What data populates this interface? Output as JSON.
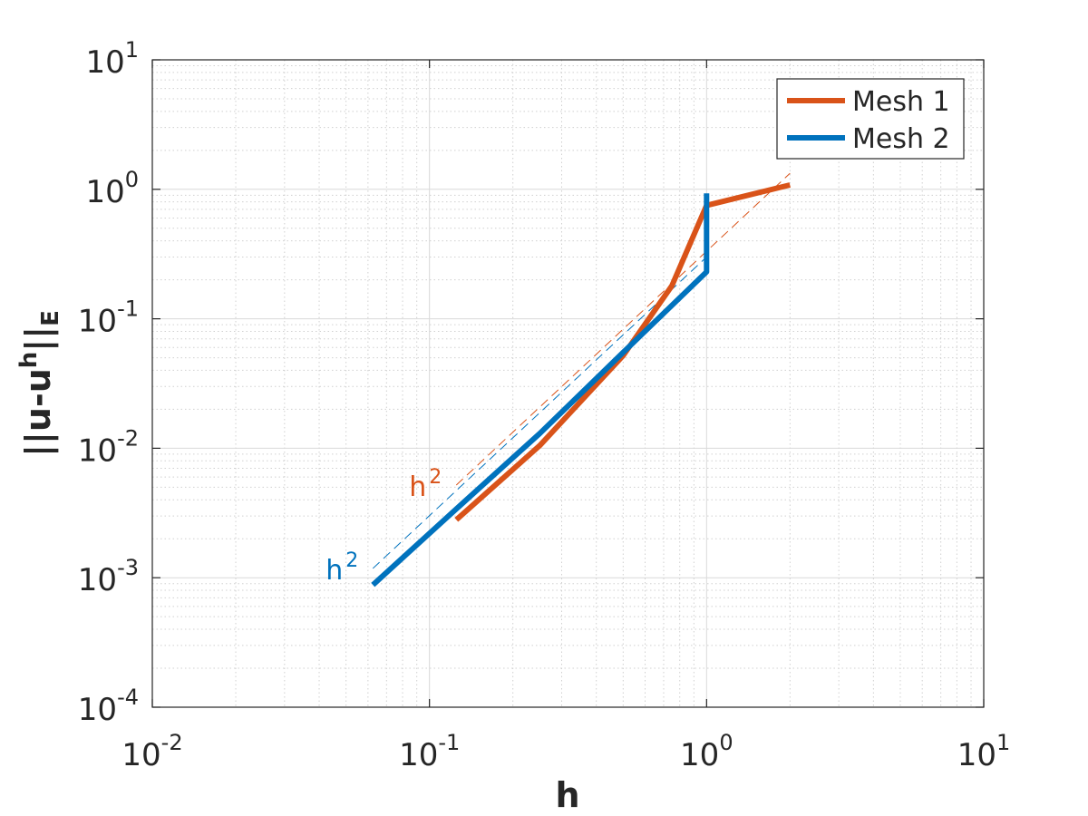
{
  "chart_data": {
    "type": "line",
    "xscale": "log",
    "yscale": "log",
    "xlim": [
      0.01,
      10
    ],
    "ylim": [
      0.0001,
      10
    ],
    "xlabel": "h",
    "ylabel": "||u-u^h||_E",
    "ylabel_parts": {
      "base": "||u-u",
      "sup": "h",
      "mid": "||",
      "sub": "E"
    },
    "grid": true,
    "minor_grid": true,
    "legend_position": "top-right",
    "x_ticks": [
      {
        "base": "10",
        "exp": "-2",
        "value": 0.01
      },
      {
        "base": "10",
        "exp": "-1",
        "value": 0.1
      },
      {
        "base": "10",
        "exp": "0",
        "value": 1
      },
      {
        "base": "10",
        "exp": "1",
        "value": 10
      }
    ],
    "y_ticks": [
      {
        "base": "10",
        "exp": "-4",
        "value": 0.0001
      },
      {
        "base": "10",
        "exp": "-3",
        "value": 0.001
      },
      {
        "base": "10",
        "exp": "-2",
        "value": 0.01
      },
      {
        "base": "10",
        "exp": "-1",
        "value": 0.1
      },
      {
        "base": "10",
        "exp": "0",
        "value": 1
      },
      {
        "base": "10",
        "exp": "1",
        "value": 10
      }
    ],
    "series": [
      {
        "name": "Mesh 1",
        "color": "#D95319",
        "x": [
          0.125,
          0.25,
          0.5,
          0.75,
          1.0,
          2.0
        ],
        "y": [
          0.0028,
          0.0105,
          0.052,
          0.18,
          0.75,
          1.08
        ]
      },
      {
        "name": "Mesh 2",
        "color": "#0072BD",
        "x": [
          0.0625,
          0.125,
          0.25,
          0.5,
          1.0,
          1.0
        ],
        "y": [
          0.00088,
          0.0034,
          0.013,
          0.055,
          0.23,
          0.93
        ]
      }
    ],
    "reference_lines": [
      {
        "label_base": "h",
        "label_exp": "2",
        "color": "#D95319",
        "x": [
          0.125,
          2.0
        ],
        "y": [
          0.0052,
          1.33
        ]
      },
      {
        "label_base": "h",
        "label_exp": "2",
        "color": "#0072BD",
        "x": [
          0.0625,
          1.0
        ],
        "y": [
          0.00118,
          0.3
        ]
      }
    ]
  }
}
